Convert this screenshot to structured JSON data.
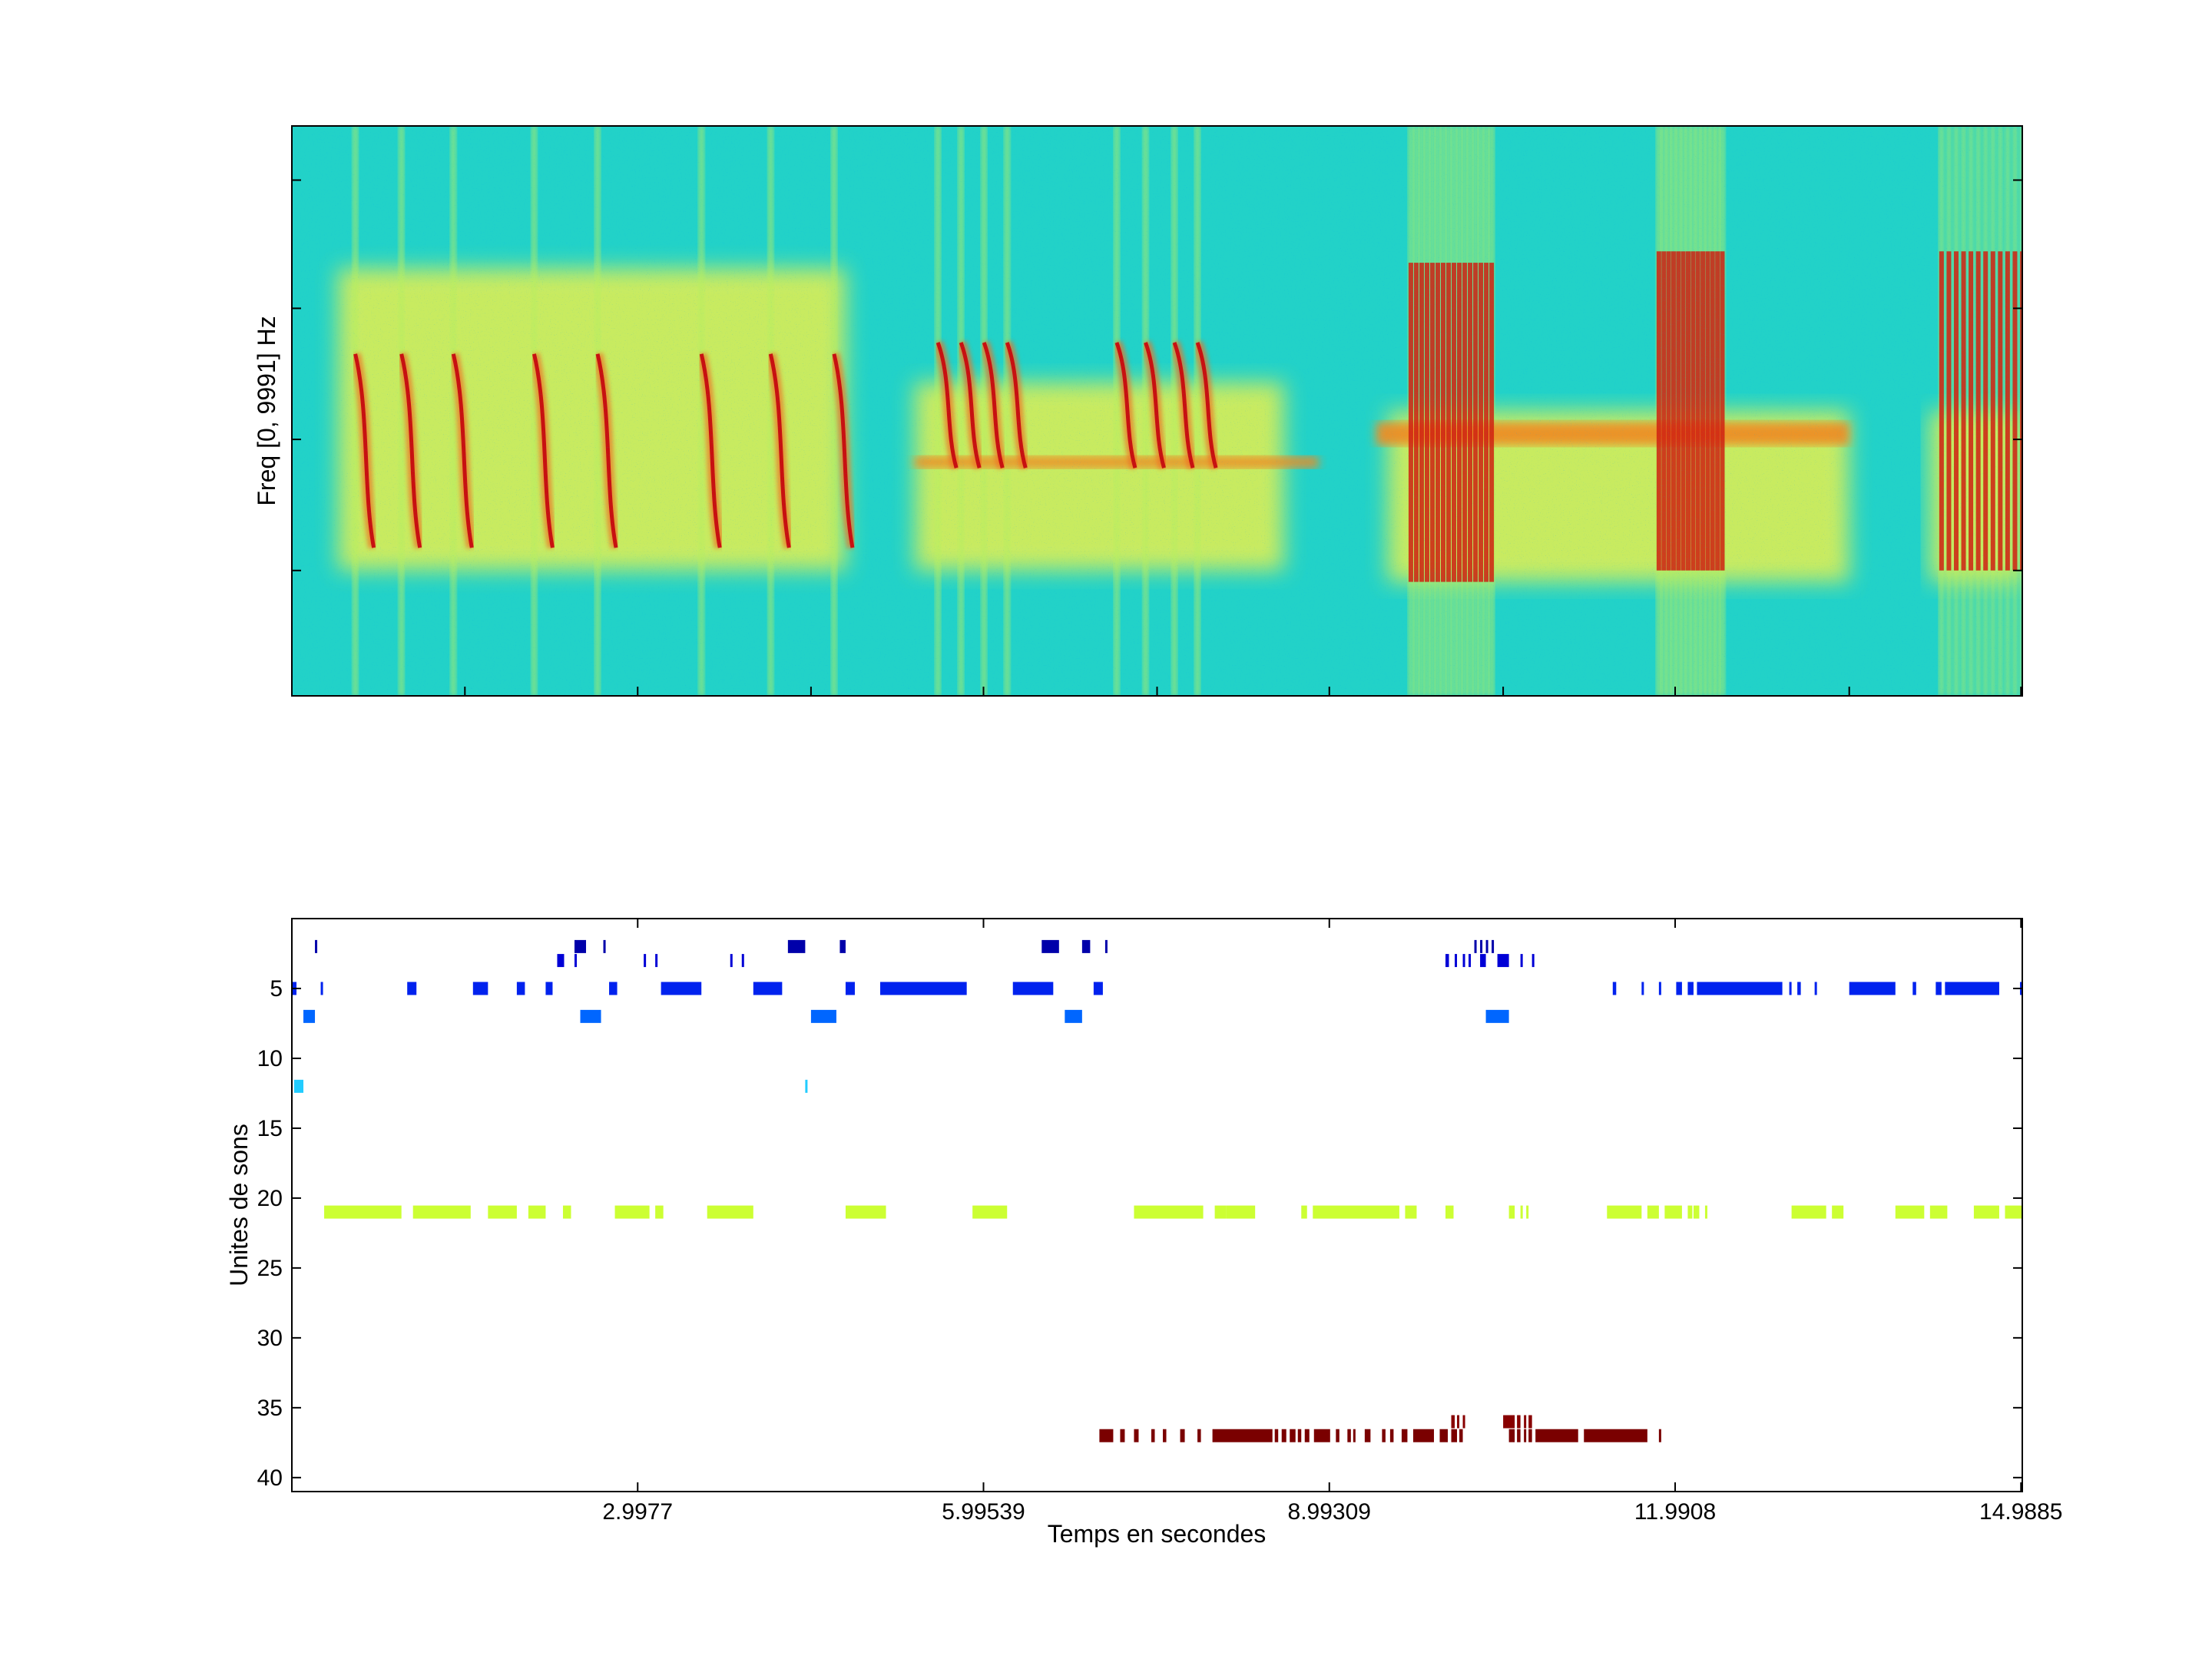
{
  "chart_data": [
    {
      "type": "heatmap",
      "title": "",
      "xlabel": "",
      "ylabel": "Freq [0, 9991] Hz",
      "colormap": "jet",
      "xlim": [
        0,
        15.0
      ],
      "grid": false,
      "syllable_groups": [
        {
          "x": [
            0.55,
            0.95,
            1.4,
            2.1,
            2.65,
            3.55,
            4.15,
            4.7
          ],
          "f": [
            0.6,
            0.26
          ],
          "strong": true
        },
        {
          "x": [
            5.6,
            5.8,
            6.0,
            6.2
          ],
          "f": [
            0.62,
            0.4
          ],
          "strong": true
        },
        {
          "x": [
            7.15,
            7.4,
            7.65,
            7.85
          ],
          "f": [
            0.62,
            0.4
          ],
          "strong": true
        }
      ],
      "noise_band": [
        {
          "x": [
            0.4,
            4.8
          ],
          "f": [
            0.75,
            0.22
          ]
        },
        {
          "x": [
            5.4,
            8.6
          ],
          "f": [
            0.55,
            0.22
          ]
        },
        {
          "x": [
            9.5,
            13.5
          ],
          "f": [
            0.5,
            0.2
          ]
        },
        {
          "x": [
            14.2,
            15.0
          ],
          "f": [
            0.5,
            0.2
          ]
        }
      ],
      "harmonic_band": [
        {
          "x": [
            5.4,
            8.9
          ],
          "f": [
            0.42,
            0.4
          ]
        },
        {
          "x": [
            9.4,
            13.5
          ],
          "f": [
            0.48,
            0.44
          ]
        }
      ],
      "pulse_trains": [
        {
          "x": [
            9.7,
            10.4
          ],
          "f": [
            0.76,
            0.2
          ],
          "n": 16
        },
        {
          "x": [
            11.85,
            12.4
          ],
          "f": [
            0.78,
            0.22
          ],
          "n": 14
        },
        {
          "x": [
            14.3,
            15.0
          ],
          "f": [
            0.78,
            0.22
          ],
          "n": 12
        }
      ]
    },
    {
      "type": "scatter",
      "title": "",
      "xlabel": "Temps en secondes",
      "ylabel": "Unites de sons",
      "xlim": [
        0,
        15.0
      ],
      "ylim": [
        41,
        0
      ],
      "grid": false,
      "xticks": [
        2.9977,
        5.99539,
        8.99309,
        11.9908,
        14.9885
      ],
      "xtick_labels": [
        "2.9977",
        "5.99539",
        "8.99309",
        "11.9908",
        "14.9885"
      ],
      "yticks": [
        5,
        10,
        15,
        20,
        25,
        30,
        35,
        40
      ],
      "ytick_labels": [
        "5",
        "10",
        "15",
        "20",
        "25",
        "30",
        "35",
        "40"
      ],
      "series": [
        {
          "unit": 2,
          "color": "#0000AA",
          "segments": [
            [
              0.2,
              0.22
            ],
            [
              2.45,
              2.55
            ],
            [
              2.7,
              2.72
            ],
            [
              4.3,
              4.45
            ],
            [
              4.75,
              4.8
            ],
            [
              6.5,
              6.65
            ],
            [
              6.85,
              6.92
            ],
            [
              7.05,
              7.07
            ],
            [
              10.25,
              10.27
            ],
            [
              10.3,
              10.32
            ],
            [
              10.35,
              10.37
            ],
            [
              10.4,
              10.42
            ]
          ]
        },
        {
          "unit": 3,
          "color": "#0000D6",
          "segments": [
            [
              2.3,
              2.36
            ],
            [
              2.45,
              2.47
            ],
            [
              3.05,
              3.07
            ],
            [
              3.15,
              3.17
            ],
            [
              3.8,
              3.82
            ],
            [
              3.9,
              3.92
            ],
            [
              10.0,
              10.03
            ],
            [
              10.08,
              10.1
            ],
            [
              10.15,
              10.17
            ],
            [
              10.2,
              10.22
            ],
            [
              10.3,
              10.35
            ],
            [
              10.45,
              10.55
            ],
            [
              10.65,
              10.67
            ],
            [
              10.75,
              10.77
            ]
          ]
        },
        {
          "unit": 5,
          "color": "#0022EE",
          "segments": [
            [
              0.0,
              0.04
            ],
            [
              0.25,
              0.27
            ],
            [
              1.0,
              1.08
            ],
            [
              1.57,
              1.7
            ],
            [
              1.95,
              2.02
            ],
            [
              2.2,
              2.26
            ],
            [
              2.75,
              2.82
            ],
            [
              3.2,
              3.55
            ],
            [
              4.0,
              4.25
            ],
            [
              4.8,
              4.88
            ],
            [
              5.1,
              5.85
            ],
            [
              6.25,
              6.6
            ],
            [
              6.95,
              7.03
            ],
            [
              11.45,
              11.48
            ],
            [
              11.7,
              11.72
            ],
            [
              11.85,
              11.87
            ],
            [
              12.0,
              12.05
            ],
            [
              12.1,
              12.15
            ],
            [
              12.18,
              12.92
            ],
            [
              12.98,
              13.0
            ],
            [
              13.05,
              13.08
            ],
            [
              13.2,
              13.22
            ],
            [
              13.5,
              13.9
            ],
            [
              14.05,
              14.08
            ],
            [
              14.25,
              14.3
            ],
            [
              14.33,
              14.8
            ],
            [
              14.98,
              15.0
            ]
          ]
        },
        {
          "unit": 7,
          "color": "#0066FF",
          "segments": [
            [
              0.1,
              0.2
            ],
            [
              2.5,
              2.68
            ],
            [
              4.5,
              4.72
            ],
            [
              6.7,
              6.85
            ],
            [
              10.35,
              10.55
            ]
          ]
        },
        {
          "unit": 12,
          "color": "#22CCFF",
          "segments": [
            [
              0.02,
              0.1
            ],
            [
              4.45,
              4.47
            ]
          ]
        },
        {
          "unit": 21,
          "color": "#CCFF33",
          "segments": [
            [
              0.28,
              0.95
            ],
            [
              1.05,
              1.55
            ],
            [
              1.7,
              1.95
            ],
            [
              2.05,
              2.2
            ],
            [
              2.35,
              2.42
            ],
            [
              2.8,
              3.1
            ],
            [
              3.15,
              3.22
            ],
            [
              3.6,
              4.0
            ],
            [
              4.8,
              5.15
            ],
            [
              5.9,
              6.2
            ],
            [
              7.3,
              7.9
            ],
            [
              8.0,
              8.1
            ],
            [
              8.1,
              8.35
            ],
            [
              8.75,
              8.8
            ],
            [
              8.85,
              9.6
            ],
            [
              9.65,
              9.75
            ],
            [
              10.0,
              10.07
            ],
            [
              10.55,
              10.6
            ],
            [
              10.65,
              10.67
            ],
            [
              10.7,
              10.72
            ],
            [
              11.4,
              11.7
            ],
            [
              11.75,
              11.85
            ],
            [
              11.9,
              12.05
            ],
            [
              12.1,
              12.14
            ],
            [
              12.15,
              12.2
            ],
            [
              12.25,
              12.27
            ],
            [
              13.0,
              13.3
            ],
            [
              13.35,
              13.45
            ],
            [
              13.9,
              14.15
            ],
            [
              14.2,
              14.35
            ],
            [
              14.58,
              14.8
            ],
            [
              14.85,
              15.0
            ]
          ]
        },
        {
          "unit": 36,
          "color": "#880000",
          "segments": [
            [
              10.05,
              10.08
            ],
            [
              10.1,
              10.12
            ],
            [
              10.15,
              10.17
            ],
            [
              10.5,
              10.6
            ],
            [
              10.62,
              10.65
            ],
            [
              10.68,
              10.7
            ],
            [
              10.72,
              10.75
            ]
          ]
        },
        {
          "unit": 37,
          "color": "#7A0000",
          "segments": [
            [
              7.0,
              7.12
            ],
            [
              7.18,
              7.22
            ],
            [
              7.3,
              7.34
            ],
            [
              7.45,
              7.48
            ],
            [
              7.55,
              7.58
            ],
            [
              7.7,
              7.74
            ],
            [
              7.85,
              7.88
            ],
            [
              7.98,
              8.5
            ],
            [
              8.52,
              8.55
            ],
            [
              8.58,
              8.62
            ],
            [
              8.65,
              8.7
            ],
            [
              8.72,
              8.75
            ],
            [
              8.78,
              8.82
            ],
            [
              8.86,
              9.0
            ],
            [
              9.05,
              9.08
            ],
            [
              9.15,
              9.18
            ],
            [
              9.2,
              9.22
            ],
            [
              9.3,
              9.35
            ],
            [
              9.45,
              9.48
            ],
            [
              9.52,
              9.55
            ],
            [
              9.62,
              9.67
            ],
            [
              9.72,
              9.9
            ],
            [
              9.95,
              10.02
            ],
            [
              10.05,
              10.1
            ],
            [
              10.12,
              10.15
            ],
            [
              10.55,
              10.6
            ],
            [
              10.62,
              10.65
            ],
            [
              10.68,
              10.7
            ],
            [
              10.72,
              10.75
            ],
            [
              10.78,
              11.15
            ],
            [
              11.2,
              11.75
            ],
            [
              11.85,
              11.87
            ]
          ]
        }
      ]
    }
  ]
}
